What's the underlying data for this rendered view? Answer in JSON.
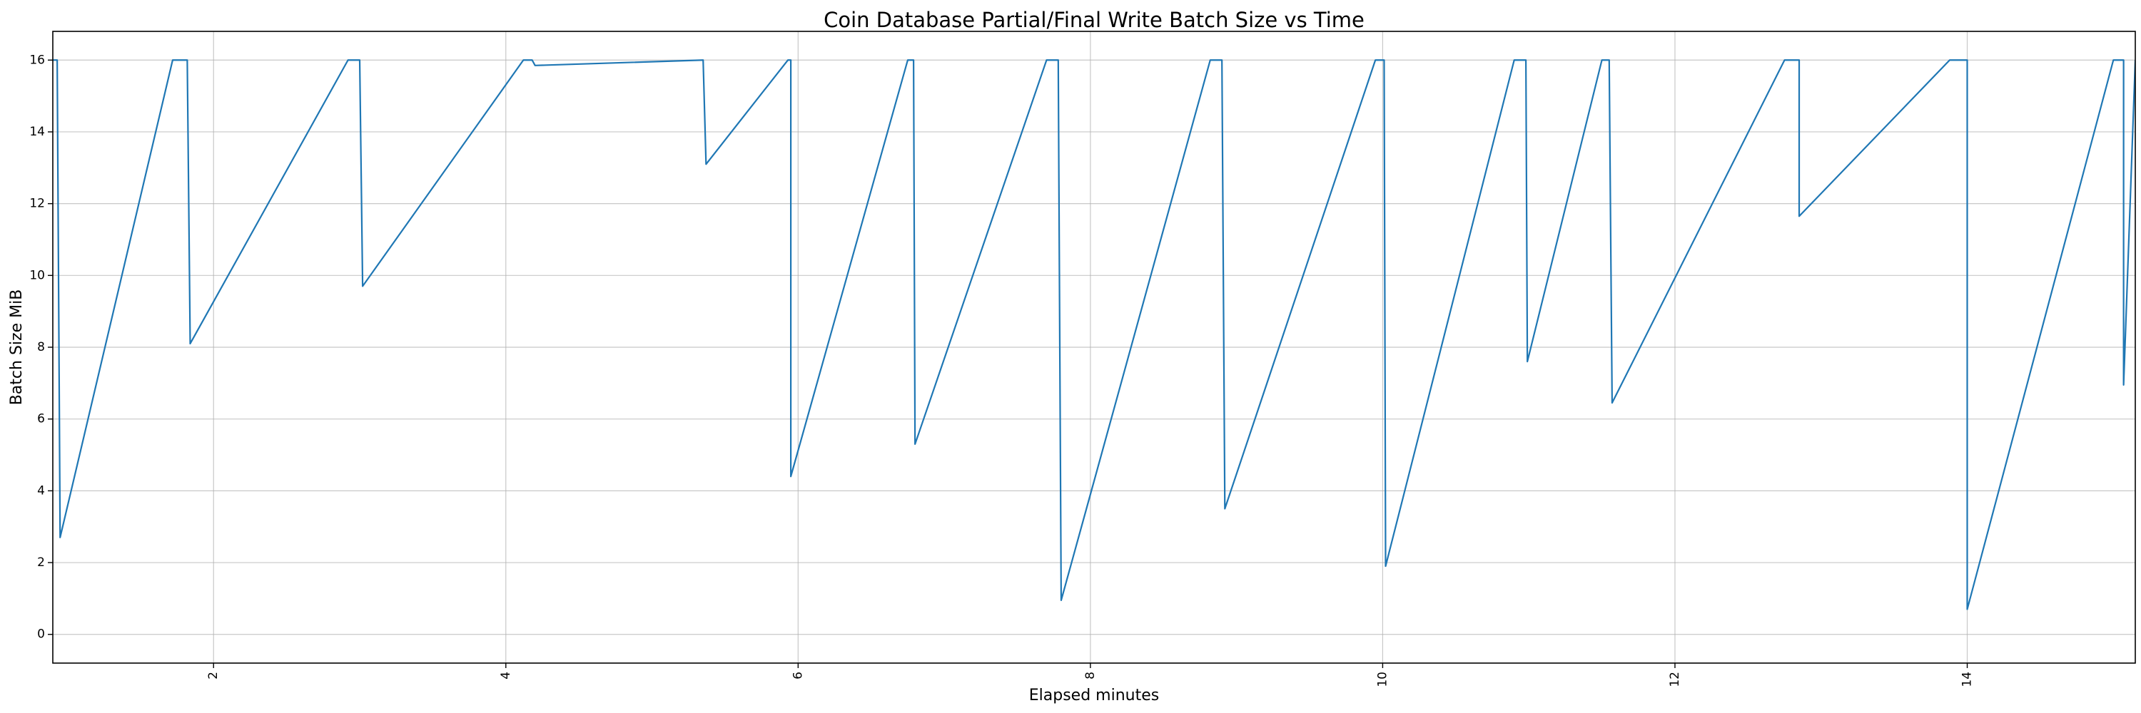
{
  "chart_data": {
    "type": "line",
    "title": "Coin Database Partial/Final Write Batch Size vs Time",
    "xlabel": "Elapsed minutes",
    "ylabel": "Batch Size MiB",
    "xlim": [
      0.9,
      15.15
    ],
    "ylim": [
      -0.8,
      16.8
    ],
    "xticks": [
      2,
      4,
      6,
      8,
      10,
      12,
      14
    ],
    "yticks": [
      0,
      2,
      4,
      6,
      8,
      10,
      12,
      14,
      16
    ],
    "grid": true,
    "x_tick_rotation": -90,
    "series": [
      {
        "color": "#1f77b4",
        "x": [
          0.9,
          0.93,
          0.95,
          1.72,
          1.75,
          1.82,
          1.84,
          2.92,
          2.95,
          3.0,
          3.02,
          4.12,
          4.15,
          4.18,
          4.2,
          5.35,
          5.37,
          5.93,
          5.95,
          5.95,
          6.75,
          6.78,
          6.79,
          6.8,
          7.7,
          7.73,
          7.78,
          7.8,
          8.82,
          8.85,
          8.9,
          8.92,
          9.95,
          9.98,
          10.01,
          10.02,
          10.9,
          10.93,
          10.98,
          10.99,
          11.5,
          11.53,
          11.55,
          11.57,
          12.75,
          12.78,
          12.85,
          12.85,
          13.88,
          13.9,
          14.0,
          14.0,
          15.0,
          15.03,
          15.07,
          15.07,
          15.15,
          15.15
        ],
        "y": [
          16,
          16,
          2.7,
          16,
          16,
          16,
          8.1,
          16,
          16,
          16,
          9.7,
          16,
          16,
          16,
          15.85,
          16,
          13.1,
          16,
          16,
          4.4,
          16,
          16,
          16,
          5.3,
          16,
          16,
          16,
          0.95,
          16,
          16,
          16,
          3.5,
          16,
          16,
          16,
          1.9,
          16,
          16,
          16,
          7.6,
          16,
          16,
          16,
          6.45,
          16,
          16,
          16,
          11.65,
          16,
          16,
          16,
          0.7,
          16,
          16,
          16,
          6.95,
          16,
          16
        ]
      }
    ]
  }
}
